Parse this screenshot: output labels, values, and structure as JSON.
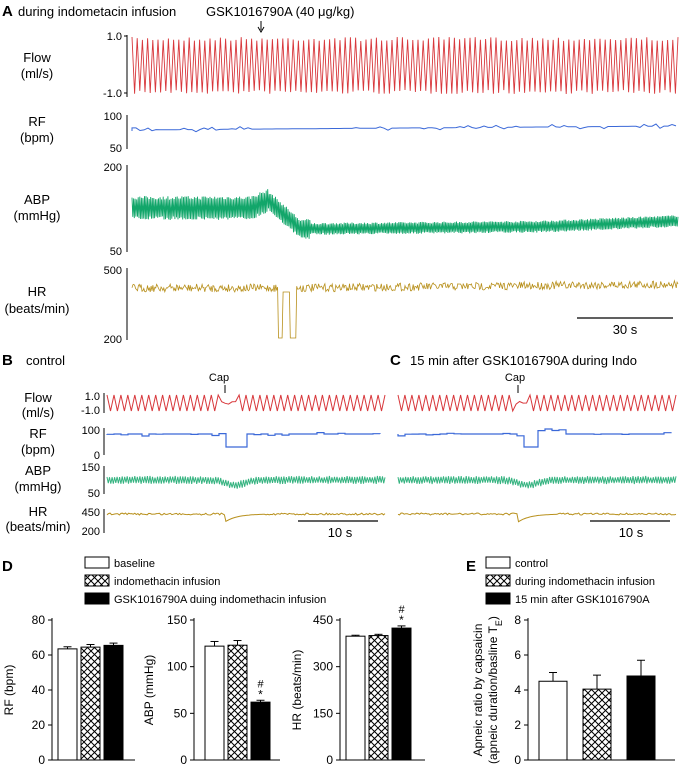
{
  "panel_a": {
    "letter": "A",
    "title": "during indometacin infusion",
    "drug_annotation": "GSK1016790A (40 μg/kg)",
    "flow": {
      "label": "Flow",
      "unit": "(ml/s)",
      "ymax": "1.0",
      "ymin": "-1.0"
    },
    "rf": {
      "label": "RF",
      "unit": "(bpm)",
      "ymax": "100",
      "ymin": "50"
    },
    "abp": {
      "label": "ABP",
      "unit": "(mmHg)",
      "ymax": "200",
      "ymin": "50"
    },
    "hr": {
      "label": "HR",
      "unit": "(beats/min)",
      "ymax": "500",
      "ymin": "200"
    },
    "scalebar": "30 s"
  },
  "panel_b": {
    "letter": "B",
    "title": "control",
    "cap": "Cap",
    "flow": {
      "label": "Flow",
      "unit": "(ml/s)",
      "ymax": "1.0",
      "ymin": "-1.0"
    },
    "rf": {
      "label": "RF",
      "unit": "(bpm)",
      "ymax": "100",
      "ymin": "0"
    },
    "abp": {
      "label": "ABP",
      "unit": "(mmHg)",
      "ymax": "150",
      "ymin": "50"
    },
    "hr": {
      "label": "HR",
      "unit": "(beats/min)",
      "ymax": "450",
      "ymin": "200"
    },
    "scalebar": "10 s"
  },
  "panel_c": {
    "letter": "C",
    "title": "15 min after GSK1016790A during Indo",
    "cap": "Cap",
    "scalebar": "10 s"
  },
  "panel_d": {
    "letter": "D",
    "legend": [
      "baseline",
      "indomethacin infusion",
      "GSK1016790A duing indomethacin infusion"
    ]
  },
  "panel_e": {
    "letter": "E",
    "legend": [
      "control",
      "during indomethacin infusion",
      "15 min after GSK1016790A"
    ]
  },
  "colors": {
    "flow": "#d8383c",
    "rf": "#3a68d8",
    "abp": "#12a66a",
    "hr": "#b8901c"
  },
  "chart_data": [
    {
      "type": "bar",
      "id": "rf",
      "categories": [
        "baseline",
        "indomethacin infusion",
        "GSK1016790A duing indomethacin infusion"
      ],
      "values": [
        63.5,
        64.5,
        65.5
      ],
      "errors": [
        1.2,
        1.5,
        1.3
      ],
      "patterns": [
        "white",
        "hatch",
        "black"
      ],
      "ylabel": "RF (bpm)",
      "ylim": [
        0,
        80
      ],
      "yticks": [
        "0",
        "20",
        "40",
        "60",
        "80"
      ],
      "annotations": [
        null,
        null,
        null
      ]
    },
    {
      "type": "bar",
      "id": "abp",
      "categories": [
        "baseline",
        "indomethacin infusion",
        "GSK1016790A duing indomethacin infusion"
      ],
      "values": [
        122,
        123,
        62
      ],
      "errors": [
        5,
        5,
        2
      ],
      "patterns": [
        "white",
        "hatch",
        "black"
      ],
      "ylabel": "ABP (mmHg)",
      "ylim": [
        0,
        150
      ],
      "yticks": [
        "0",
        "50",
        "100",
        "150"
      ],
      "annotations": [
        null,
        null,
        [
          "#",
          "*"
        ]
      ]
    },
    {
      "type": "bar",
      "id": "hr",
      "categories": [
        "baseline",
        "indomethacin infusion",
        "GSK1016790A duing indomethacin infusion"
      ],
      "values": [
        398,
        400,
        424
      ],
      "errors": [
        3,
        4,
        7
      ],
      "patterns": [
        "white",
        "hatch",
        "black"
      ],
      "ylabel": "HR (beats/min)",
      "ylim": [
        0,
        450
      ],
      "yticks": [
        "0",
        "150",
        "300",
        "450"
      ],
      "annotations": [
        null,
        null,
        [
          "#",
          "*"
        ]
      ]
    },
    {
      "type": "bar",
      "id": "apnea",
      "categories": [
        "control",
        "during indomethacin infusion",
        "15 min after GSK1016790A"
      ],
      "values": [
        4.5,
        4.05,
        4.8
      ],
      "errors": [
        0.5,
        0.8,
        0.9
      ],
      "patterns": [
        "white",
        "hatch",
        "black"
      ],
      "ylabel": "Apneic ratio by capsaicin",
      "ylabel2": "(apneic duration/basline T",
      "ylabel2_sub": "E",
      "ylabel2_close": ")",
      "ylim": [
        0,
        8
      ],
      "yticks": [
        "0",
        "2",
        "4",
        "6",
        "8"
      ],
      "annotations": [
        null,
        null,
        null
      ]
    }
  ]
}
